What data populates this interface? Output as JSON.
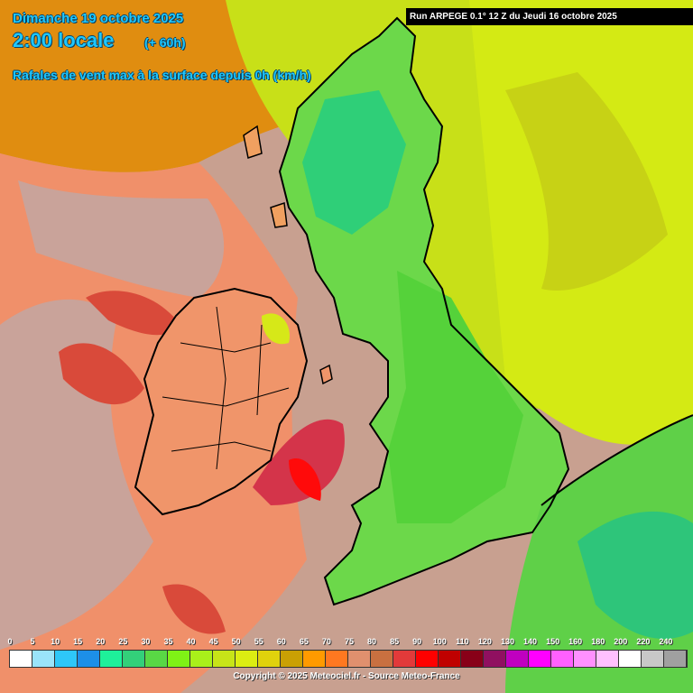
{
  "header": {
    "date": "Dimanche 19 octobre 2025",
    "time": "2:00 locale",
    "lead": "(+ 60h)",
    "parameter": "Rafales de vent max à la surface depuis 0h (km/h)"
  },
  "run": "Run ARPEGE 0.1° 12 Z du Jeudi 16 octobre 2025",
  "legend": {
    "labels": [
      "0",
      "5",
      "10",
      "15",
      "20",
      "25",
      "30",
      "35",
      "40",
      "45",
      "50",
      "55",
      "60",
      "65",
      "70",
      "75",
      "80",
      "85",
      "90",
      "100",
      "110",
      "120",
      "130",
      "140",
      "150",
      "160",
      "180",
      "200",
      "220",
      "240"
    ],
    "colors": [
      "#ffffff",
      "#9ae4fa",
      "#2ec7f8",
      "#1d8fe8",
      "#1ef09a",
      "#33d07a",
      "#59d845",
      "#7ff216",
      "#a9f01a",
      "#c7e418",
      "#dced12",
      "#e0d20c",
      "#caa004",
      "#ff9a00",
      "#ff7820",
      "#e0906e",
      "#c97040",
      "#e23a3a",
      "#ff0000",
      "#c00000",
      "#880018",
      "#901060",
      "#c000c0",
      "#ff00ff",
      "#ff60ff",
      "#ff90ff",
      "#ffc0ff",
      "#ffffff",
      "#c8c8c8",
      "#a0a0a0"
    ]
  },
  "copyright": "Copyright © 2025 Meteociel.fr - Source Meteo-France"
}
